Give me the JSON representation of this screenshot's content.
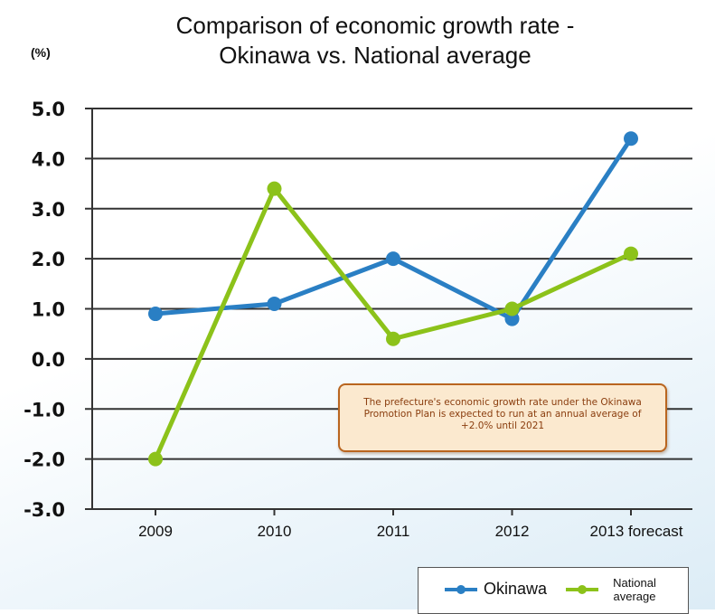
{
  "title_line1": "Comparison of economic growth rate -",
  "title_line2": "Okinawa vs. National average",
  "unit": "(%)",
  "note": "The prefecture's economic growth rate under the Okinawa Promotion Plan is expected to run at an annual average of +2.0% until 2021",
  "colors": {
    "okinawa": "#2a7fc4",
    "national": "#8cc21a",
    "note_border": "#b9651f",
    "note_bg": "#fbe9cf"
  },
  "chart_data": {
    "type": "line",
    "title": "Comparison of economic growth rate - Okinawa vs. National average",
    "ylabel": "(%)",
    "xlabel": "",
    "categories": [
      "2009",
      "2010",
      "2011",
      "2012",
      "2013 forecast"
    ],
    "ylim": [
      -3.0,
      5.0
    ],
    "yticks": [
      "5.0",
      "4.0",
      "3.0",
      "2.0",
      "1.0",
      "0.0",
      "-1.0",
      "-2.0",
      "-3.0"
    ],
    "grid": true,
    "legend_position": "bottom-right",
    "series": [
      {
        "name": "Okinawa",
        "values": [
          0.9,
          1.1,
          2.0,
          0.8,
          4.4
        ]
      },
      {
        "name": "National average",
        "values": [
          -2.0,
          3.4,
          0.4,
          1.0,
          2.1
        ]
      }
    ]
  },
  "legend": {
    "okinawa": "Okinawa",
    "national_line1": "National",
    "national_line2": "average"
  }
}
